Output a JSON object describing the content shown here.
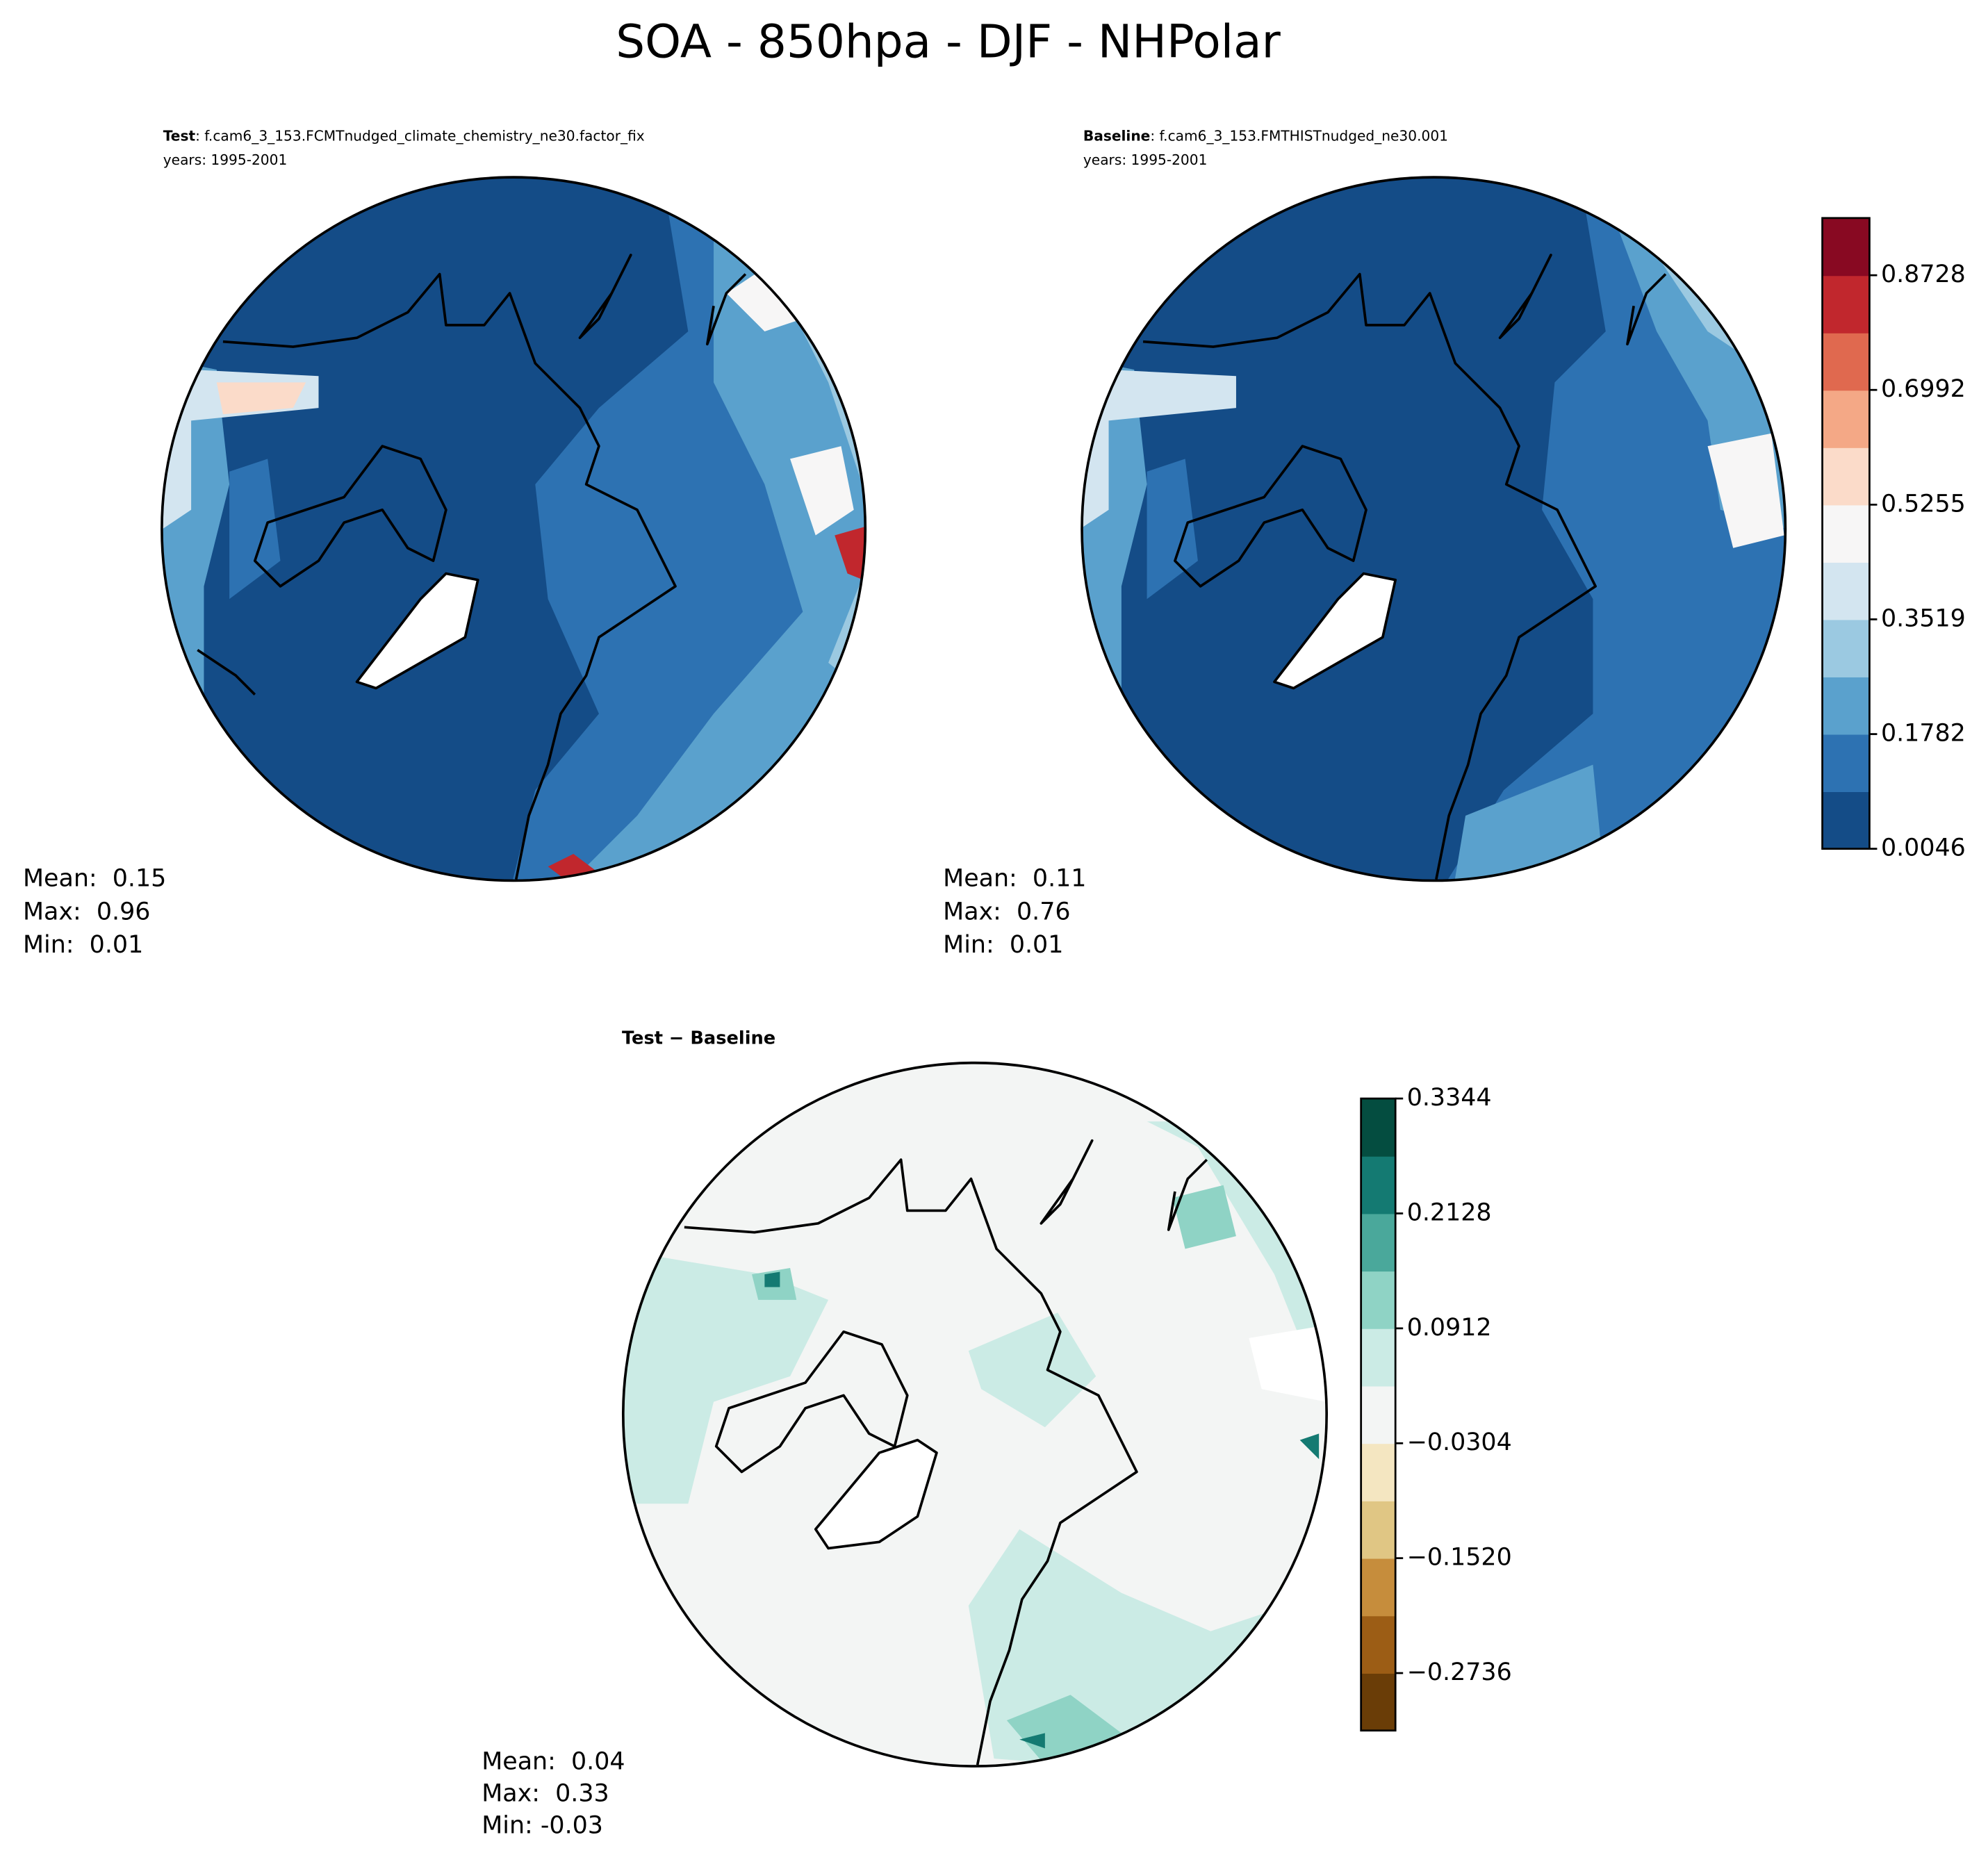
{
  "title": "SOA - 850hpa - DJF - NHPolar",
  "panels": [
    {
      "label": "Test",
      "case": ": f.cam6_3_153.FCMTnudged_climate_chemistry_ne30.factor_fix",
      "years": "years: 1995-2001",
      "stats": [
        "Mean:  0.15",
        "Max:  0.96",
        "Min:  0.01"
      ]
    },
    {
      "label": "Baseline",
      "case": ": f.cam6_3_153.FMTHISTnudged_ne30.001",
      "years": "years: 1995-2001",
      "stats": [
        "Mean:  0.11",
        "Max:  0.76",
        "Min:  0.01"
      ]
    },
    {
      "label": "Test − Baseline",
      "stats": [
        "Mean:  0.04",
        "Max:  0.33",
        "Min: -0.03"
      ]
    }
  ],
  "colorbars": [
    {
      "lim": [
        0.0046,
        0.9594
      ],
      "ticks": [
        0.0046,
        0.1782,
        0.3519,
        0.5255,
        0.6992,
        0.8728
      ],
      "colors": [
        "#144c87",
        "#2d72b2",
        "#5aa1cd",
        "#9bc9e1",
        "#d3e5f0",
        "#f7f6f6",
        "#fbdbc9",
        "#f4a886",
        "#e0694f",
        "#c1272d",
        "#880922"
      ]
    },
    {
      "lim": [
        -0.3344,
        0.3344
      ],
      "ticks": [
        {
          "value": -0.2736,
          "label": "−0.2736"
        },
        {
          "value": -0.152,
          "label": "−0.1520"
        },
        {
          "value": -0.0304,
          "label": "−0.0304"
        },
        0.0912,
        0.2128,
        0.3344
      ],
      "colors": [
        "#6a3d07",
        "#9c5d15",
        "#c68d3c",
        "#e0c684",
        "#f4e6c1",
        "#f3f5f4",
        "#cbebe5",
        "#8fd3c5",
        "#4aa89b",
        "#147a72",
        "#044d40"
      ]
    }
  ]
}
